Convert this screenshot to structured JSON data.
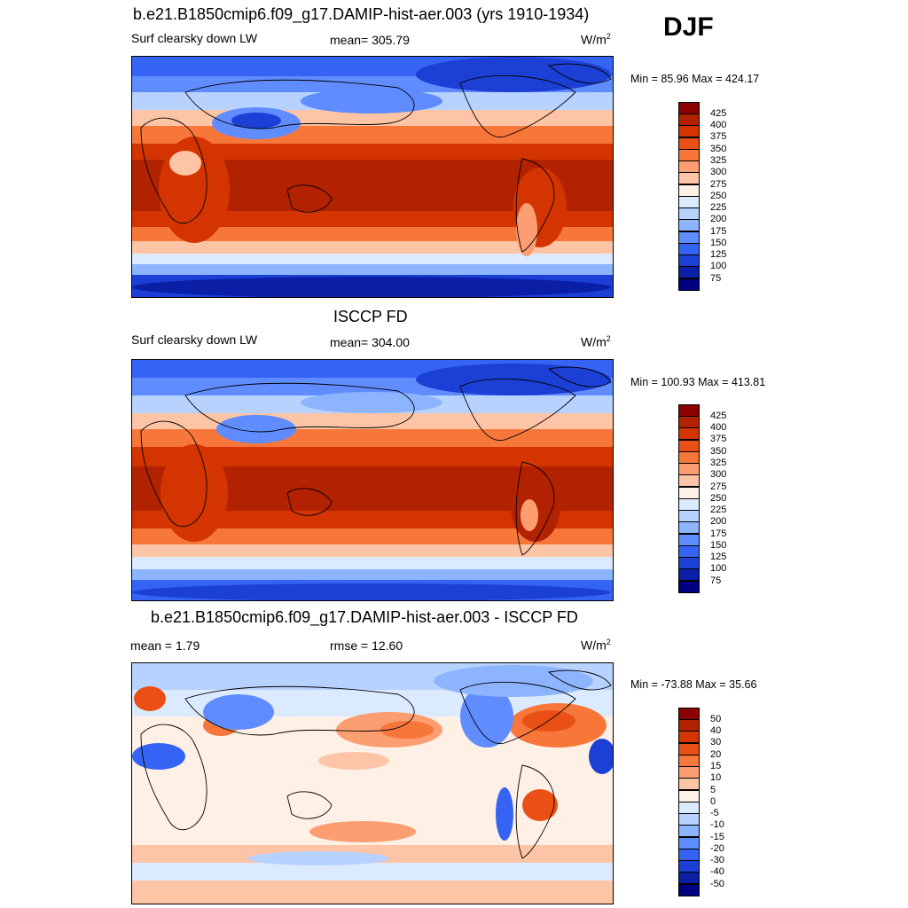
{
  "season": "DJF",
  "units_base": "W/m",
  "units_exp": "2",
  "panels": [
    {
      "title": "b.e21.B1850cmip6.f09_g17.DAMIP-hist-aer.003 (yrs 1910-1934)",
      "left": "Surf clearsky down LW",
      "center": "mean= 305.79",
      "minmax": "Min =  85.96 Max = 424.17",
      "kind": "abs"
    },
    {
      "title": "ISCCP FD",
      "left": "Surf clearsky down LW",
      "center": "mean= 304.00",
      "minmax": "Min = 100.93 Max = 413.81",
      "kind": "abs"
    },
    {
      "title": "b.e21.B1850cmip6.f09_g17.DAMIP-hist-aer.003 - ISCCP FD",
      "left": "mean =   1.79",
      "center": "rmse =  12.60",
      "minmax": "Min = -73.88 Max =  35.66",
      "kind": "diff"
    }
  ],
  "colorbar_abs": {
    "labels": [
      "425",
      "400",
      "375",
      "350",
      "325",
      "300",
      "275",
      "250",
      "225",
      "200",
      "175",
      "150",
      "125",
      "100",
      "75"
    ],
    "colors": [
      "#8b0000",
      "#b22200",
      "#d43500",
      "#ea5015",
      "#f7773a",
      "#fc9e72",
      "#fec4a6",
      "#fff0e6",
      "#dbeaff",
      "#b7d2ff",
      "#8db4ff",
      "#5f8cff",
      "#3564f4",
      "#1c3fd6",
      "#0a1fa6",
      "#000080"
    ]
  },
  "colorbar_diff": {
    "labels": [
      "50",
      "40",
      "30",
      "20",
      "15",
      "10",
      "5",
      "0",
      "-5",
      "-10",
      "-15",
      "-20",
      "-30",
      "-40",
      "-50"
    ],
    "colors": [
      "#8b0000",
      "#b22200",
      "#d43500",
      "#ea5015",
      "#f7773a",
      "#fc9e72",
      "#fec4a6",
      "#fff0e6",
      "#dbeaff",
      "#b7d2ff",
      "#8db4ff",
      "#5f8cff",
      "#3564f4",
      "#1c3fd6",
      "#0a1fa6",
      "#000080"
    ]
  }
}
